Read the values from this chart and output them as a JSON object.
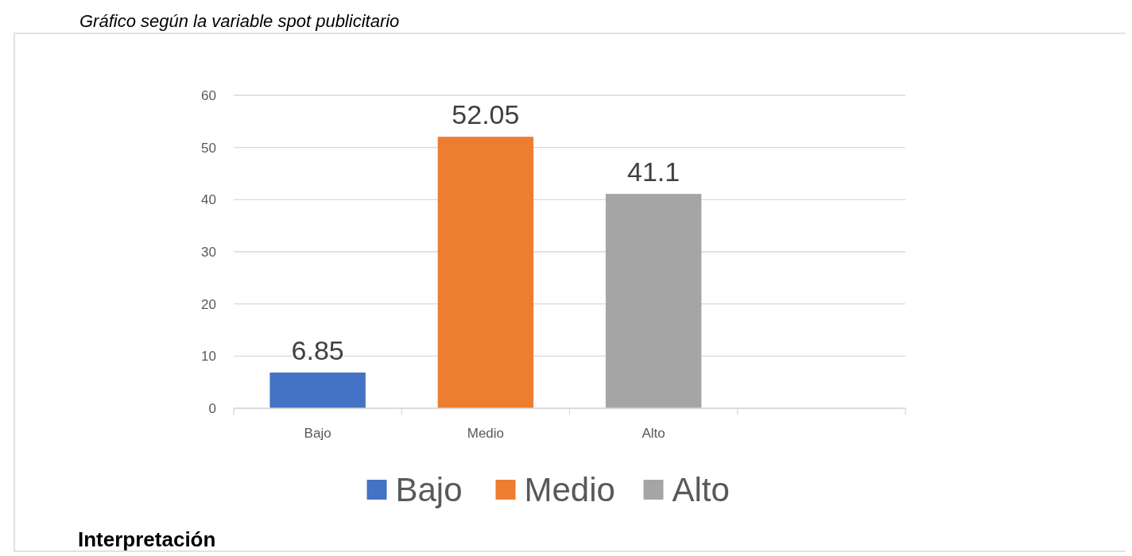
{
  "chart_data": {
    "type": "bar",
    "title": "Gráfico según la variable spot publicitario",
    "categories": [
      "Bajo",
      "Medio",
      "Alto",
      null
    ],
    "stacked": true,
    "series": [
      {
        "name": "Bajo",
        "color": "#4472c4",
        "values": [
          6.85,
          null,
          null,
          null
        ]
      },
      {
        "name": "Medio",
        "color": "#ed7d31",
        "values": [
          null,
          52.05,
          null,
          null
        ]
      },
      {
        "name": "Alto",
        "color": "#a5a5a5",
        "values": [
          null,
          null,
          41.1,
          null
        ]
      }
    ],
    "ylim": [
      0,
      60
    ],
    "yticks": [
      0,
      10,
      20,
      30,
      40,
      50,
      60
    ],
    "grid": "y",
    "data_labels": true,
    "legend": "bottom",
    "annotations": [
      "Interpretación"
    ]
  }
}
